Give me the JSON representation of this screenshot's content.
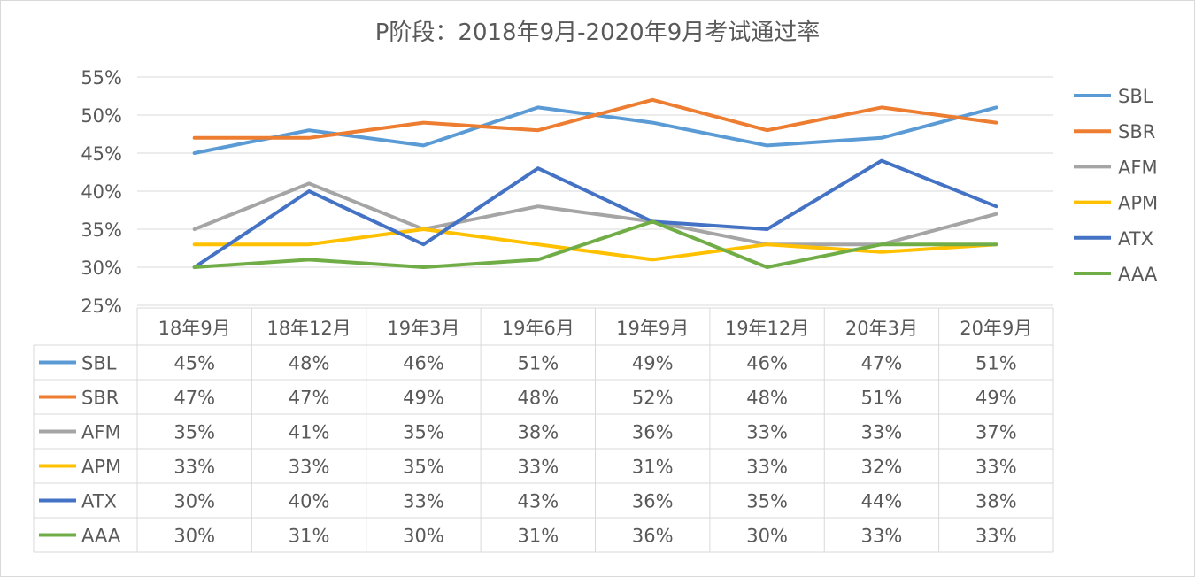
{
  "chart_data": {
    "type": "line",
    "title": "P阶段：2018年9月-2020年9月考试通过率",
    "categories": [
      "18年9月",
      "18年12月",
      "19年3月",
      "19年6月",
      "19年9月",
      "19年12月",
      "20年3月",
      "20年9月"
    ],
    "ylim": [
      25,
      55
    ],
    "yticks": [
      "25%",
      "30%",
      "35%",
      "40%",
      "45%",
      "50%",
      "55%"
    ],
    "ytick_values": [
      25,
      30,
      35,
      40,
      45,
      50,
      55
    ],
    "grid": true,
    "legend_position": "right",
    "data_table": true,
    "series": [
      {
        "name": "SBL",
        "color": "#5B9BD5",
        "values": [
          45,
          48,
          46,
          51,
          49,
          46,
          47,
          51
        ]
      },
      {
        "name": "SBR",
        "color": "#ED7D31",
        "values": [
          47,
          47,
          49,
          48,
          52,
          48,
          51,
          49
        ]
      },
      {
        "name": "AFM",
        "color": "#A5A5A5",
        "values": [
          35,
          41,
          35,
          38,
          36,
          33,
          33,
          37
        ]
      },
      {
        "name": "APM",
        "color": "#FFC000",
        "values": [
          33,
          33,
          35,
          33,
          31,
          33,
          32,
          33
        ]
      },
      {
        "name": "ATX",
        "color": "#4472C4",
        "values": [
          30,
          40,
          33,
          43,
          36,
          35,
          44,
          38
        ]
      },
      {
        "name": "AAA",
        "color": "#70AD47",
        "values": [
          30,
          31,
          30,
          31,
          36,
          30,
          33,
          33
        ]
      }
    ]
  }
}
